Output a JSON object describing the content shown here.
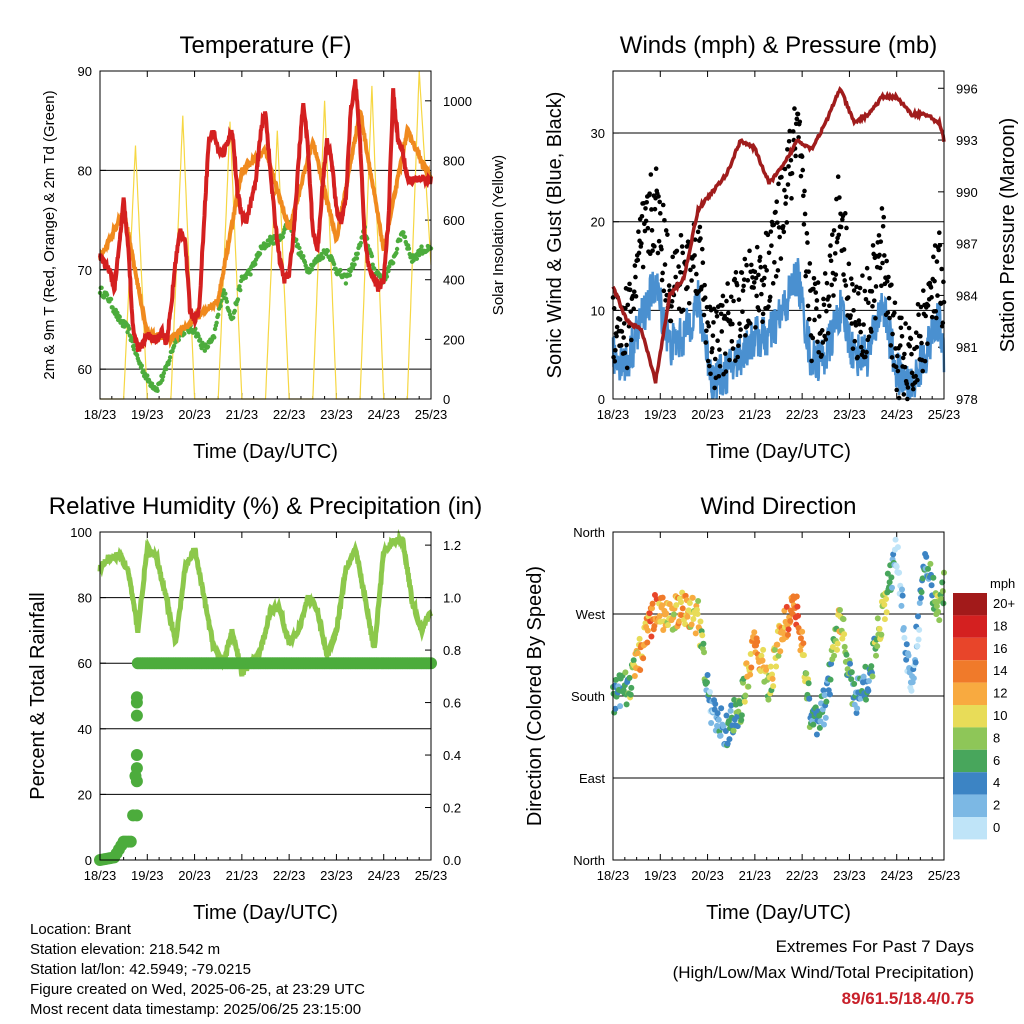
{
  "info": {
    "location": "Location: Brant",
    "elevation": "Station elevation: 218.542 m",
    "latlon": "Station lat/lon: 42.5949; -79.0215",
    "created": "Figure created on Wed, 2025-06-25, at 23:29 UTC",
    "recent": "Most recent data timestamp: 2025/06/25 23:15:00"
  },
  "extremes": {
    "title": "Extremes For Past 7 Days",
    "subtitle": "(High/Low/Max Wind/Total Precipitation)",
    "values": "89/61.5/18.4/0.75"
  },
  "chart_data": [
    {
      "type": "line",
      "title": "Temperature (F)",
      "xlabel": "Time (Day/UTC)",
      "ylabel": "2m & 9m T (Red, Orange) & 2m Td (Green)",
      "y2label": "Solar Insolation (Yellow)",
      "x_ticks": [
        "18/23",
        "19/23",
        "20/23",
        "21/23",
        "22/23",
        "23/23",
        "24/23",
        "25/23"
      ],
      "ylim": [
        57,
        90
      ],
      "y_ticks": [
        60,
        70,
        80,
        90
      ],
      "y2lim": [
        0,
        1100
      ],
      "y2_ticks": [
        0,
        200,
        400,
        600,
        800,
        1000
      ],
      "grid": "y",
      "colors": {
        "t2m": "#d42020",
        "t9m": "#f08a1e",
        "td": "#4cac3c",
        "solar": "#f6d743"
      },
      "series": [
        {
          "name": "2m T",
          "axis": "left",
          "x": [
            0,
            0.1,
            0.2,
            0.3,
            0.4,
            0.5,
            0.6,
            0.7,
            0.8,
            0.9,
            1,
            1.1,
            1.2,
            1.3,
            1.4,
            1.5,
            1.6,
            1.7,
            1.8,
            1.9,
            2,
            2.1,
            2.2,
            2.3,
            2.4,
            2.5,
            2.6,
            2.7,
            2.8,
            2.9,
            3,
            3.1,
            3.2,
            3.3,
            3.4,
            3.5,
            3.6,
            3.7,
            3.8,
            3.9,
            4,
            4.1,
            4.2,
            4.3,
            4.4,
            4.5,
            4.6,
            4.7,
            4.8,
            4.9,
            5,
            5.1,
            5.2,
            5.3,
            5.4,
            5.5,
            5.6,
            5.7,
            5.8,
            5.9,
            6,
            6.1,
            6.2,
            6.3,
            6.4,
            6.5,
            6.6,
            6.7,
            6.8,
            6.9,
            7
          ],
          "values": [
            71.5,
            70.5,
            70,
            68,
            72,
            77,
            72,
            64,
            62,
            62.5,
            63.5,
            63,
            63,
            64,
            62.5,
            66,
            71,
            74,
            73,
            66,
            65,
            66,
            75,
            83,
            84,
            82,
            81.5,
            83,
            84,
            78,
            75.5,
            75,
            77,
            79,
            84,
            86,
            80,
            75,
            71,
            69,
            69.5,
            74,
            81,
            87,
            82,
            74,
            72,
            78,
            83,
            81,
            76,
            75,
            77,
            86,
            89,
            83,
            73,
            70,
            69,
            68,
            69,
            75,
            88,
            83,
            82,
            79,
            79,
            79,
            79,
            79,
            79
          ]
        },
        {
          "name": "9m T",
          "axis": "left",
          "x": [
            0,
            0.5,
            1,
            1.5,
            2,
            2.5,
            3,
            3.5,
            4,
            4.5,
            5,
            5.5,
            6,
            6.5,
            7
          ],
          "values": [
            71,
            76,
            63.5,
            63,
            65,
            67,
            80,
            82,
            74,
            83,
            73,
            86,
            72,
            84,
            79
          ]
        },
        {
          "name": "2m Td",
          "axis": "left",
          "x": [
            0,
            0.2,
            0.4,
            0.6,
            0.8,
            1,
            1.2,
            1.4,
            1.6,
            1.8,
            2,
            2.2,
            2.4,
            2.6,
            2.8,
            3,
            3.2,
            3.4,
            3.6,
            3.8,
            4,
            4.2,
            4.4,
            4.6,
            4.8,
            5,
            5.2,
            5.4,
            5.6,
            5.8,
            6,
            6.2,
            6.4,
            6.6,
            6.8,
            7
          ],
          "values": [
            68,
            67,
            65,
            64,
            61,
            59,
            58,
            60,
            63,
            64,
            64,
            62,
            63,
            68,
            65,
            69,
            70,
            72,
            73,
            73,
            75,
            72,
            70,
            71,
            72,
            70,
            69,
            71,
            74,
            70,
            69,
            71,
            74,
            71,
            72,
            72
          ]
        },
        {
          "name": "Solar",
          "axis": "right",
          "x": [
            0,
            0.5,
            0.75,
            1,
            1.5,
            1.75,
            2,
            2.5,
            2.75,
            3,
            3.5,
            3.75,
            4,
            4.5,
            4.75,
            5,
            5.5,
            5.75,
            6,
            6.5,
            6.75,
            7
          ],
          "values": [
            0,
            0,
            850,
            0,
            0,
            950,
            0,
            0,
            930,
            0,
            0,
            900,
            0,
            0,
            1000,
            0,
            0,
            1050,
            0,
            0,
            1100,
            450
          ]
        }
      ]
    },
    {
      "type": "scatter",
      "title": "Winds (mph) & Pressure (mb)",
      "xlabel": "Time (Day/UTC)",
      "ylabel": "Sonic Wind & Gust (Blue, Black)",
      "y2label": "Station Pressure (Maroon)",
      "x_ticks": [
        "18/23",
        "19/23",
        "20/23",
        "21/23",
        "22/23",
        "23/23",
        "24/23",
        "25/23"
      ],
      "ylim": [
        0,
        37
      ],
      "y_ticks": [
        0,
        10,
        20,
        30
      ],
      "y2lim": [
        978,
        997
      ],
      "y2_ticks": [
        978,
        981,
        984,
        987,
        990,
        993,
        996
      ],
      "grid": "y",
      "colors": {
        "wind": "#4a90d0",
        "gust": "#000000",
        "pressure": "#a01c1c"
      },
      "series": [
        {
          "name": "Wind",
          "x": [
            0,
            0.3,
            0.6,
            0.9,
            1.2,
            1.5,
            1.8,
            2.1,
            2.4,
            2.7,
            3,
            3.3,
            3.6,
            3.9,
            4.2,
            4.5,
            4.8,
            5.1,
            5.4,
            5.7,
            6,
            6.3,
            6.6,
            6.9,
            7
          ],
          "values": [
            5,
            4,
            9,
            13,
            6,
            7,
            11,
            2,
            3,
            5,
            7,
            7,
            10,
            14,
            4,
            5,
            10,
            5,
            5,
            11,
            3,
            1,
            5,
            9,
            5
          ]
        },
        {
          "name": "Gust",
          "x": [
            0,
            0.3,
            0.6,
            0.9,
            1.2,
            1.5,
            1.8,
            2.1,
            2.4,
            2.7,
            3,
            3.3,
            3.6,
            3.9,
            4.2,
            4.5,
            4.8,
            5.1,
            5.4,
            5.7,
            6,
            6.3,
            6.6,
            6.9,
            7
          ],
          "values": [
            9,
            8,
            17,
            22,
            13,
            14,
            17,
            5,
            8,
            10,
            13,
            14,
            22,
            30,
            9,
            10,
            22,
            8,
            10,
            17,
            5,
            3,
            9,
            14,
            8
          ]
        },
        {
          "name": "Pressure",
          "axis": "right",
          "x": [
            0,
            0.3,
            0.6,
            0.9,
            1.2,
            1.5,
            1.8,
            2.1,
            2.4,
            2.7,
            3,
            3.3,
            3.6,
            3.9,
            4.2,
            4.5,
            4.8,
            5.1,
            5.4,
            5.7,
            6,
            6.3,
            6.6,
            6.9,
            7
          ],
          "values": [
            984.5,
            982.5,
            982,
            979,
            984,
            985,
            989,
            990,
            991,
            993,
            992.5,
            990.5,
            991.5,
            993,
            992.5,
            994,
            996,
            994,
            994.5,
            995.5,
            995.5,
            994.5,
            994.5,
            994,
            993
          ]
        }
      ]
    },
    {
      "type": "line",
      "title": "Relative Humidity (%) & Precipitation (in)",
      "xlabel": "Time (Day/UTC)",
      "ylabel": "Percent & Total Rainfall",
      "x_ticks": [
        "18/23",
        "19/23",
        "20/23",
        "21/23",
        "22/23",
        "23/23",
        "24/23",
        "25/23"
      ],
      "ylim": [
        0,
        100
      ],
      "y_ticks": [
        0,
        20,
        40,
        60,
        80,
        100
      ],
      "y2lim": [
        0,
        1.25
      ],
      "y2_ticks": [
        "0.0",
        "0.2",
        "0.4",
        "0.6",
        "0.8",
        "1.0",
        "1.2"
      ],
      "grid": "y",
      "colors": {
        "rh": "#8cc84b",
        "precip": "#4cac3c"
      },
      "series": [
        {
          "name": "RH",
          "x": [
            0,
            0.2,
            0.4,
            0.6,
            0.8,
            1,
            1.2,
            1.4,
            1.6,
            1.8,
            2,
            2.2,
            2.4,
            2.6,
            2.8,
            3,
            3.2,
            3.4,
            3.6,
            3.8,
            4,
            4.2,
            4.4,
            4.6,
            4.8,
            5,
            5.2,
            5.4,
            5.6,
            5.8,
            6,
            6.2,
            6.4,
            6.6,
            6.8,
            7
          ],
          "values": [
            89,
            92,
            93,
            88,
            70,
            95,
            92,
            80,
            66,
            89,
            95,
            80,
            65,
            60,
            70,
            57,
            60,
            64,
            76,
            77,
            66,
            70,
            80,
            76,
            62,
            70,
            89,
            95,
            80,
            64,
            94,
            97,
            98,
            79,
            70,
            76
          ]
        },
        {
          "name": "Precip",
          "axis": "right",
          "x": [
            0,
            0.3,
            0.5,
            0.6,
            0.65,
            0.7,
            0.75,
            0.8,
            0.9,
            1,
            1.5,
            2,
            3,
            4,
            5,
            6,
            7
          ],
          "values": [
            0,
            0.01,
            0.07,
            0.07,
            0.07,
            0.17,
            0.32,
            0.75,
            0.75,
            0.75,
            0.75,
            0.75,
            0.75,
            0.75,
            0.75,
            0.75,
            0.75
          ]
        }
      ]
    },
    {
      "type": "scatter",
      "title": "Wind Direction",
      "xlabel": "Time (Day/UTC)",
      "ylabel": "Direction (Colored By Speed)",
      "x_ticks": [
        "18/23",
        "19/23",
        "20/23",
        "21/23",
        "22/23",
        "23/23",
        "24/23",
        "25/23"
      ],
      "y_ticks": [
        "North",
        "East",
        "South",
        "West",
        "North"
      ],
      "ylim": [
        0,
        360
      ],
      "grid": "y",
      "legend_title": "mph",
      "legend_labels": [
        "20+",
        "18",
        "16",
        "14",
        "12",
        "10",
        "8",
        "6",
        "4",
        "2",
        "0"
      ],
      "legend_colors": [
        "#a21a1a",
        "#d42020",
        "#e8452a",
        "#f07a2a",
        "#f8aa40",
        "#e8dc58",
        "#8ec658",
        "#48a65c",
        "#3c84c4",
        "#7cb8e4",
        "#bfe4f8"
      ],
      "series": [
        {
          "name": "Direction",
          "x": [
            0,
            0.3,
            0.6,
            0.9,
            1.2,
            1.5,
            1.8,
            2.1,
            2.4,
            2.7,
            3,
            3.3,
            3.6,
            3.9,
            4.2,
            4.5,
            4.8,
            5.1,
            5.4,
            5.7,
            6,
            6.3,
            6.6,
            6.9,
            7
          ],
          "values": [
            180,
            190,
            230,
            275,
            270,
            275,
            265,
            160,
            140,
            170,
            240,
            190,
            260,
            275,
            150,
            170,
            270,
            175,
            200,
            270,
            340,
            180,
            330,
            270,
            300
          ],
          "speeds": [
            4,
            6,
            12,
            14,
            10,
            12,
            10,
            2,
            4,
            6,
            14,
            8,
            12,
            16,
            4,
            4,
            10,
            4,
            4,
            10,
            1,
            2,
            4,
            8,
            6
          ]
        }
      ]
    }
  ]
}
